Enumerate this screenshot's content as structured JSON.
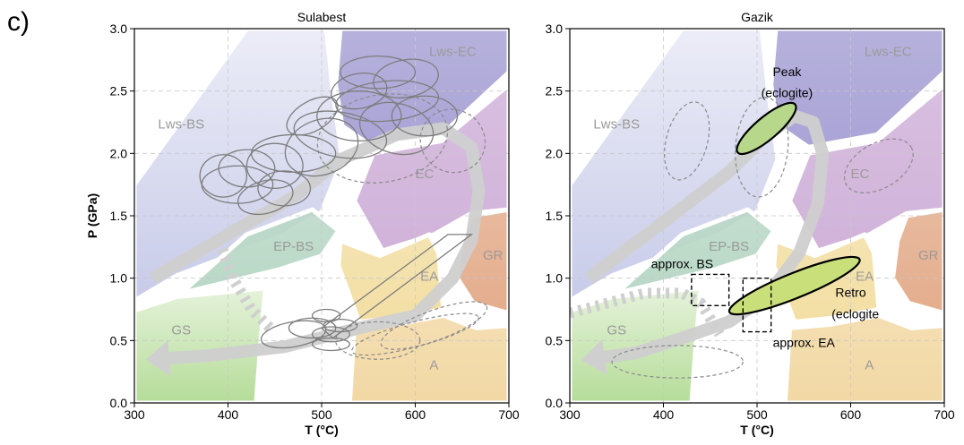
{
  "figure": {
    "panel_label": "c)"
  },
  "chart_data": [
    {
      "type": "scatter",
      "title": "Sulabest",
      "xlabel": "T (°C)",
      "ylabel": "P (GPa)",
      "xlim": [
        300,
        700
      ],
      "ylim": [
        0.0,
        3.0
      ],
      "xticks": [
        300,
        400,
        500,
        600,
        700
      ],
      "yticks": [
        "0.0",
        "0.5",
        "1.0",
        "1.5",
        "2.0",
        "2.5",
        "3.0"
      ],
      "grid": true,
      "facies": [
        {
          "label": "Lws-EC",
          "color": "#a9a4d6",
          "x": 640,
          "y": 2.78,
          "poly": [
            [
              520,
              3.0
            ],
            [
              700,
              3.0
            ],
            [
              700,
              2.65
            ],
            [
              628,
              2.15
            ],
            [
              555,
              2.05
            ],
            [
              522,
              2.22
            ],
            [
              515,
              2.55
            ]
          ]
        },
        {
          "label": "Lws-BS",
          "color": "#c8cbe9",
          "x": 350,
          "y": 2.2,
          "poly": [
            [
              300,
              1.75
            ],
            [
              300,
              0.82
            ],
            [
              345,
              1.02
            ],
            [
              460,
              1.35
            ],
            [
              500,
              1.53
            ],
            [
              522,
              1.95
            ],
            [
              512,
              2.5
            ],
            [
              505,
              3.0
            ],
            [
              420,
              3.0
            ]
          ]
        },
        {
          "label": "EC",
          "color": "#d1b3da",
          "x": 610,
          "y": 1.8,
          "poly": [
            [
              535,
              1.62
            ],
            [
              555,
              2.0
            ],
            [
              628,
              2.1
            ],
            [
              700,
              2.55
            ],
            [
              700,
              1.55
            ],
            [
              660,
              1.52
            ],
            [
              620,
              1.35
            ],
            [
              565,
              1.22
            ]
          ]
        },
        {
          "label": "EP-BS",
          "color": "#b9d8c6",
          "x": 470,
          "y": 1.22,
          "poly": [
            [
              350,
              0.88
            ],
            [
              455,
              1.07
            ],
            [
              500,
              1.18
            ],
            [
              518,
              1.38
            ],
            [
              490,
              1.55
            ],
            [
              420,
              1.35
            ]
          ]
        },
        {
          "label": "GS",
          "color": "#b5dc98",
          "x": 350,
          "y": 0.55,
          "poly": [
            [
              300,
              0.74
            ],
            [
              300,
              0.0
            ],
            [
              430,
              0.0
            ],
            [
              435,
              0.5
            ],
            [
              440,
              0.92
            ],
            [
              345,
              0.85
            ]
          ]
        },
        {
          "label": "EA",
          "color": "#f3dfa4",
          "x": 615,
          "y": 0.98,
          "poly": [
            [
              518,
              1.1
            ],
            [
              520,
              1.3
            ],
            [
              562,
              1.18
            ],
            [
              615,
              1.35
            ],
            [
              625,
              1.2
            ],
            [
              630,
              0.75
            ],
            [
              580,
              0.68
            ],
            [
              540,
              0.65
            ]
          ]
        },
        {
          "label": "GR",
          "color": "#e4ad8d",
          "x": 683,
          "y": 1.15,
          "poly": [
            [
              660,
              1.5
            ],
            [
              700,
              1.55
            ],
            [
              700,
              0.72
            ],
            [
              662,
              0.8
            ],
            [
              645,
              1.0
            ],
            [
              650,
              1.3
            ]
          ]
        },
        {
          "label": "A",
          "color": "#f2d8a4",
          "x": 620,
          "y": 0.27,
          "poly": [
            [
              530,
              0.0
            ],
            [
              700,
              0.0
            ],
            [
              700,
              0.62
            ],
            [
              665,
              0.6
            ],
            [
              630,
              0.7
            ],
            [
              580,
              0.63
            ],
            [
              535,
              0.6
            ]
          ]
        }
      ],
      "labels": [],
      "path_arrow": {
        "color": "#cfcfcf",
        "points": [
          [
            320,
            1.0
          ],
          [
            400,
            1.35
          ],
          [
            470,
            1.65
          ],
          [
            520,
            1.95
          ],
          [
            580,
            2.15
          ],
          [
            630,
            2.2
          ],
          [
            660,
            2.05
          ],
          [
            668,
            1.7
          ],
          [
            660,
            1.3
          ],
          [
            640,
            1.0
          ],
          [
            600,
            0.7
          ],
          [
            540,
            0.6
          ],
          [
            460,
            0.45
          ],
          [
            380,
            0.38
          ],
          [
            320,
            0.35
          ]
        ]
      },
      "dashed_path": {
        "color": "#cfcfcf",
        "points": [
          [
            390,
            1.3
          ],
          [
            405,
            1.0
          ],
          [
            425,
            0.75
          ],
          [
            445,
            0.6
          ]
        ]
      },
      "ellipses_solid": [
        {
          "x": 560,
          "y": 2.65,
          "rx": 40,
          "ry": 0.13,
          "rot": 0
        },
        {
          "x": 590,
          "y": 2.6,
          "rx": 35,
          "ry": 0.15,
          "rot": -10
        },
        {
          "x": 570,
          "y": 2.42,
          "rx": 55,
          "ry": 0.16,
          "rot": -5
        },
        {
          "x": 540,
          "y": 2.3,
          "rx": 45,
          "ry": 0.2,
          "rot": 0
        },
        {
          "x": 520,
          "y": 2.15,
          "rx": 50,
          "ry": 0.18,
          "rot": 10
        },
        {
          "x": 500,
          "y": 2.05,
          "rx": 40,
          "ry": 0.22,
          "rot": -20
        },
        {
          "x": 470,
          "y": 2.0,
          "rx": 45,
          "ry": 0.15,
          "rot": 0
        },
        {
          "x": 450,
          "y": 1.9,
          "rx": 30,
          "ry": 0.18,
          "rot": 0
        },
        {
          "x": 420,
          "y": 1.88,
          "rx": 30,
          "ry": 0.15,
          "rot": 0
        },
        {
          "x": 410,
          "y": 1.75,
          "rx": 38,
          "ry": 0.15,
          "rot": 0
        },
        {
          "x": 440,
          "y": 1.65,
          "rx": 30,
          "ry": 0.13,
          "rot": -15
        },
        {
          "x": 460,
          "y": 1.72,
          "rx": 28,
          "ry": 0.14,
          "rot": 0
        },
        {
          "x": 395,
          "y": 1.82,
          "rx": 25,
          "ry": 0.17,
          "rot": 0
        },
        {
          "x": 580,
          "y": 2.2,
          "rx": 40,
          "ry": 0.2,
          "rot": 15
        },
        {
          "x": 610,
          "y": 2.3,
          "rx": 35,
          "ry": 0.16,
          "rot": 0
        },
        {
          "x": 540,
          "y": 2.5,
          "rx": 30,
          "ry": 0.14,
          "rot": -10
        },
        {
          "x": 490,
          "y": 2.3,
          "rx": 30,
          "ry": 0.12,
          "rot": -30
        },
        {
          "x": 470,
          "y": 0.55,
          "rx": 35,
          "ry": 0.1,
          "rot": -10
        },
        {
          "x": 490,
          "y": 0.6,
          "rx": 25,
          "ry": 0.08,
          "rot": 0
        },
        {
          "x": 510,
          "y": 0.55,
          "rx": 20,
          "ry": 0.06,
          "rot": 0
        },
        {
          "x": 505,
          "y": 0.7,
          "rx": 15,
          "ry": 0.05,
          "rot": 0
        },
        {
          "x": 510,
          "y": 0.47,
          "rx": 20,
          "ry": 0.05,
          "rot": 0
        },
        {
          "x": 520,
          "y": 0.62,
          "rx": 18,
          "ry": 0.05,
          "rot": 0
        }
      ],
      "ellipses_dashed": [
        {
          "x": 565,
          "y": 2.12,
          "rx": 70,
          "ry": 0.35,
          "rot": -10
        },
        {
          "x": 640,
          "y": 2.1,
          "rx": 35,
          "ry": 0.25,
          "rot": 30
        },
        {
          "x": 600,
          "y": 0.55,
          "rx": 70,
          "ry": 0.1,
          "rot": -15
        },
        {
          "x": 560,
          "y": 0.5,
          "rx": 45,
          "ry": 0.15,
          "rot": 0
        },
        {
          "x": 620,
          "y": 0.62,
          "rx": 60,
          "ry": 0.12,
          "rot": -20
        }
      ],
      "parallelogram": [
        [
          512,
          0.52
        ],
        [
          660,
          1.35
        ],
        [
          635,
          1.35
        ],
        [
          500,
          0.6
        ]
      ]
    },
    {
      "type": "scatter",
      "title": "Gazik",
      "xlabel": "T (°C)",
      "ylabel": "",
      "xlim": [
        300,
        700
      ],
      "ylim": [
        0.0,
        3.0
      ],
      "xticks": [
        300,
        400,
        500,
        600,
        700
      ],
      "yticks": [
        "0.0",
        "0.5",
        "1.0",
        "1.5",
        "2.0",
        "2.5",
        "3.0"
      ],
      "grid": true,
      "facies": [
        {
          "label": "Lws-EC",
          "color": "#a9a4d6",
          "x": 640,
          "y": 2.78,
          "poly": [
            [
              520,
              3.0
            ],
            [
              700,
              3.0
            ],
            [
              700,
              2.65
            ],
            [
              628,
              2.15
            ],
            [
              555,
              2.05
            ],
            [
              522,
              2.22
            ],
            [
              515,
              2.55
            ]
          ]
        },
        {
          "label": "Lws-BS",
          "color": "#c8cbe9",
          "x": 350,
          "y": 2.2,
          "poly": [
            [
              300,
              1.75
            ],
            [
              300,
              0.82
            ],
            [
              345,
              1.02
            ],
            [
              460,
              1.35
            ],
            [
              500,
              1.53
            ],
            [
              522,
              1.95
            ],
            [
              512,
              2.5
            ],
            [
              505,
              3.0
            ],
            [
              420,
              3.0
            ]
          ]
        },
        {
          "label": "EC",
          "color": "#d1b3da",
          "x": 610,
          "y": 1.8,
          "poly": [
            [
              535,
              1.62
            ],
            [
              555,
              2.0
            ],
            [
              628,
              2.1
            ],
            [
              700,
              2.55
            ],
            [
              700,
              1.55
            ],
            [
              660,
              1.52
            ],
            [
              620,
              1.35
            ],
            [
              565,
              1.22
            ]
          ]
        },
        {
          "label": "EP-BS",
          "color": "#b9d8c6",
          "x": 470,
          "y": 1.22,
          "poly": [
            [
              350,
              0.88
            ],
            [
              455,
              1.07
            ],
            [
              500,
              1.18
            ],
            [
              518,
              1.38
            ],
            [
              490,
              1.55
            ],
            [
              420,
              1.35
            ]
          ]
        },
        {
          "label": "GS",
          "color": "#b5dc98",
          "x": 350,
          "y": 0.55,
          "poly": [
            [
              300,
              0.74
            ],
            [
              300,
              0.0
            ],
            [
              430,
              0.0
            ],
            [
              435,
              0.5
            ],
            [
              440,
              0.92
            ],
            [
              345,
              0.85
            ]
          ]
        },
        {
          "label": "EA",
          "color": "#f3dfa4",
          "x": 615,
          "y": 0.98,
          "poly": [
            [
              518,
              1.1
            ],
            [
              520,
              1.3
            ],
            [
              562,
              1.18
            ],
            [
              615,
              1.35
            ],
            [
              625,
              1.2
            ],
            [
              630,
              0.75
            ],
            [
              580,
              0.68
            ],
            [
              540,
              0.65
            ]
          ]
        },
        {
          "label": "GR",
          "color": "#e4ad8d",
          "x": 683,
          "y": 1.15,
          "poly": [
            [
              660,
              1.5
            ],
            [
              700,
              1.55
            ],
            [
              700,
              0.72
            ],
            [
              662,
              0.8
            ],
            [
              645,
              1.0
            ],
            [
              650,
              1.3
            ]
          ]
        },
        {
          "label": "A",
          "color": "#f2d8a4",
          "x": 620,
          "y": 0.27,
          "poly": [
            [
              530,
              0.0
            ],
            [
              700,
              0.0
            ],
            [
              700,
              0.62
            ],
            [
              665,
              0.6
            ],
            [
              630,
              0.7
            ],
            [
              580,
              0.63
            ],
            [
              535,
              0.6
            ]
          ]
        }
      ],
      "labels": [
        {
          "text": "Peak",
          "x": 532,
          "y": 2.62
        },
        {
          "text": "(eclogite)",
          "x": 532,
          "y": 2.45
        },
        {
          "text": "approx. BS",
          "x": 420,
          "y": 1.08
        },
        {
          "text": "Retro",
          "x": 600,
          "y": 0.85
        },
        {
          "text": "(eclogite",
          "x": 605,
          "y": 0.68
        },
        {
          "text": "approx. EA",
          "x": 550,
          "y": 0.45
        }
      ],
      "path_arrow": {
        "color": "#cfcfcf",
        "points": [
          [
            320,
            1.0
          ],
          [
            400,
            1.45
          ],
          [
            470,
            1.85
          ],
          [
            510,
            2.15
          ],
          [
            540,
            2.3
          ],
          [
            560,
            2.25
          ],
          [
            570,
            2.0
          ],
          [
            565,
            1.6
          ],
          [
            545,
            1.2
          ],
          [
            510,
            0.85
          ],
          [
            470,
            0.65
          ],
          [
            420,
            0.52
          ],
          [
            370,
            0.4
          ],
          [
            320,
            0.35
          ]
        ]
      },
      "dashed_path": {
        "color": "#cfcfcf",
        "points": [
          [
            300,
            0.72
          ],
          [
            380,
            0.88
          ],
          [
            420,
            0.88
          ],
          [
            440,
            0.8
          ],
          [
            460,
            0.55
          ]
        ]
      },
      "ellipses_solid": [],
      "ellipses_dashed": [
        {
          "x": 425,
          "y": 2.1,
          "rx": 22,
          "ry": 0.32,
          "rot": 15
        },
        {
          "x": 505,
          "y": 2.05,
          "rx": 28,
          "ry": 0.4,
          "rot": 5
        },
        {
          "x": 630,
          "y": 1.9,
          "rx": 40,
          "ry": 0.18,
          "rot": -30
        },
        {
          "x": 415,
          "y": 0.33,
          "rx": 70,
          "ry": 0.13,
          "rot": 0
        }
      ],
      "highlight_ellipses": [
        {
          "name": "peak",
          "x": 510,
          "y": 2.2,
          "rx": 40,
          "ry": 0.09,
          "rot": -40,
          "color": "#b7d88a"
        },
        {
          "name": "retro",
          "x": 540,
          "y": 0.94,
          "rx": 75,
          "ry": 0.1,
          "rot": -22,
          "color": "#c9e07a"
        }
      ],
      "dashed_boxes": [
        {
          "name": "approx-bs",
          "x0": 430,
          "x1": 470,
          "y0": 0.78,
          "y1": 1.03
        },
        {
          "name": "approx-ea",
          "x0": 485,
          "x1": 515,
          "y0": 0.57,
          "y1": 1.0
        }
      ]
    }
  ]
}
